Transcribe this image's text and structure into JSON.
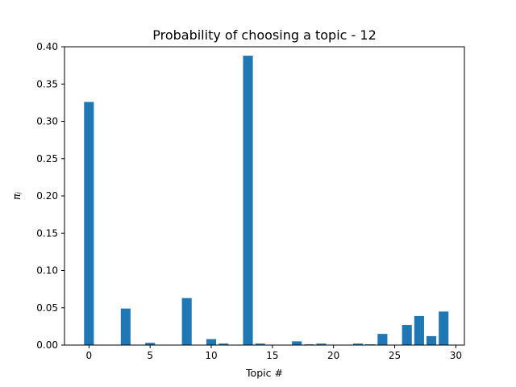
{
  "chart_data": {
    "type": "bar",
    "title": "Probability of choosing a topic - 12",
    "xlabel": "Topic #",
    "ylabel": "πⱼ",
    "xlim": [
      -2,
      30.7
    ],
    "ylim": [
      0,
      0.4
    ],
    "xticks": [
      0,
      5,
      10,
      15,
      20,
      25,
      30
    ],
    "yticks": [
      0.0,
      0.05,
      0.1,
      0.15,
      0.2,
      0.25,
      0.3,
      0.35,
      0.4
    ],
    "ytick_labels": [
      "0.00",
      "0.05",
      "0.10",
      "0.15",
      "0.20",
      "0.25",
      "0.30",
      "0.35",
      "0.40"
    ],
    "x": [
      0,
      1,
      2,
      3,
      4,
      5,
      6,
      7,
      8,
      9,
      10,
      11,
      12,
      13,
      14,
      15,
      16,
      17,
      18,
      19,
      20,
      21,
      22,
      23,
      24,
      25,
      26,
      27,
      28,
      29
    ],
    "values": [
      0.326,
      0.0,
      0.0,
      0.049,
      0.0,
      0.003,
      0.0,
      0.0,
      0.063,
      0.0,
      0.008,
      0.002,
      0.0,
      0.388,
      0.002,
      0.0,
      0.0,
      0.005,
      0.001,
      0.002,
      0.0,
      0.0,
      0.002,
      0.001,
      0.015,
      0.0,
      0.027,
      0.039,
      0.012,
      0.045
    ],
    "bar_color": "#1f77b4",
    "grid": false,
    "legend": "none"
  }
}
